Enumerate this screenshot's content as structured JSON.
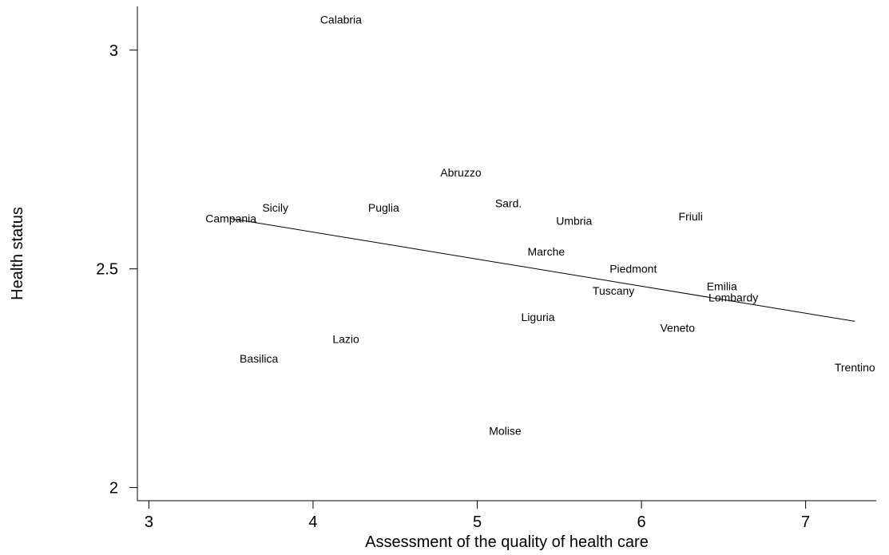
{
  "chart_data": {
    "type": "scatter",
    "marker": "text-label",
    "xlabel": "Assessment of the quality of health care",
    "ylabel": "Health status",
    "xlim": [
      2.93,
      7.43
    ],
    "ylim": [
      1.97,
      3.1
    ],
    "xticks": [
      3,
      4,
      5,
      6,
      7
    ],
    "yticks": [
      2,
      2.5,
      3
    ],
    "ytick_labels": [
      "2",
      "2.5",
      "3"
    ],
    "grid": false,
    "legend": "none",
    "points": [
      {
        "label": "Calabria",
        "x": 4.17,
        "y": 3.07
      },
      {
        "label": "Abruzzo",
        "x": 4.9,
        "y": 2.72
      },
      {
        "label": "Sard.",
        "x": 5.19,
        "y": 2.65
      },
      {
        "label": "Sicily",
        "x": 3.77,
        "y": 2.64
      },
      {
        "label": "Puglia",
        "x": 4.43,
        "y": 2.64
      },
      {
        "label": "Campania",
        "x": 3.5,
        "y": 2.615
      },
      {
        "label": "Umbria",
        "x": 5.59,
        "y": 2.61
      },
      {
        "label": "Friuli",
        "x": 6.3,
        "y": 2.62
      },
      {
        "label": "Marche",
        "x": 5.42,
        "y": 2.54
      },
      {
        "label": "Piedmont",
        "x": 5.95,
        "y": 2.5
      },
      {
        "label": "Emilia",
        "x": 6.49,
        "y": 2.46
      },
      {
        "label": "Tuscany",
        "x": 5.83,
        "y": 2.45
      },
      {
        "label": "Lombardy",
        "x": 6.56,
        "y": 2.435
      },
      {
        "label": "Liguria",
        "x": 5.37,
        "y": 2.39
      },
      {
        "label": "Veneto",
        "x": 6.22,
        "y": 2.365
      },
      {
        "label": "Lazio",
        "x": 4.2,
        "y": 2.34
      },
      {
        "label": "Basilica",
        "x": 3.67,
        "y": 2.295
      },
      {
        "label": "Trentino",
        "x": 7.3,
        "y": 2.275
      },
      {
        "label": "Molise",
        "x": 5.17,
        "y": 2.13
      }
    ],
    "fit_line": {
      "x": [
        3.5,
        7.3
      ],
      "y": [
        2.615,
        2.38
      ]
    }
  }
}
